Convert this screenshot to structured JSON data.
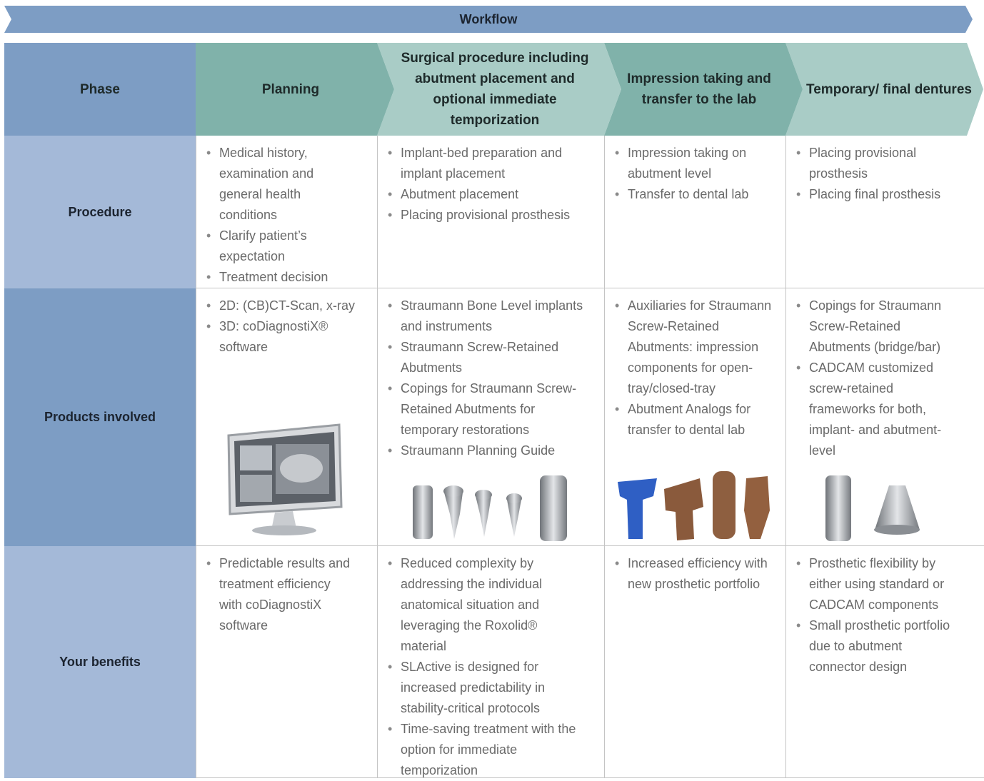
{
  "banner": "Workflow",
  "table": {
    "header": [
      "Phase",
      "Planning",
      "Surgical procedure including abutment placement and optional immediate temporization",
      "Impression taking and transfer to the lab",
      "Temporary/ final dentures"
    ],
    "rows": [
      {
        "label": "Procedure",
        "cells": [
          [
            "Medical history, examination and general health conditions",
            "Clarify patient’s expectation",
            "Treatment decision"
          ],
          [
            "Implant-bed preparation and implant placement",
            "Abutment placement",
            "Placing provisional prosthesis"
          ],
          [
            "Impression taking on abutment level",
            "Transfer to dental lab"
          ],
          [
            "Placing provisional prosthesis",
            "Placing final prosthesis"
          ]
        ]
      },
      {
        "label": "Products involved",
        "cells": [
          [
            "2D: (CB)CT-Scan, x-ray",
            "3D: coDiagnostiX® software"
          ],
          [
            "Straumann Bone Level implants and instruments",
            "Straumann Screw-Retained Abutments",
            "Copings for Straumann Screw-Retained Abutments for temporary restorations",
            "Straumann Planning Guide"
          ],
          [
            "Auxiliaries for Straumann Screw-Retained Abutments: impression components for open-tray/closed-tray",
            "Abutment Analogs for transfer to dental lab"
          ],
          [
            "Copings for Straumann Screw-Retained Abutments (bridge/bar)",
            "CADCAM customized screw-retained frameworks for both, implant- and abutment-level"
          ]
        ]
      },
      {
        "label": "Your benefits",
        "cells": [
          [
            "Predictable results and treatment efficiency with coDiagnostiX software"
          ],
          [
            "Reduced complexity by addressing the individual anatomical situation and leveraging the Roxolid® material",
            "SLActive is designed for increased predictability in stability-critical protocols",
            "Time-saving treatment with the option for immediate temporization"
          ],
          [
            "Increased efficiency with new prosthetic portfolio"
          ],
          [
            "Prosthetic flexibility by either using standard or CADCAM components",
            "Small prosthetic portfolio due to abutment connector design"
          ]
        ]
      }
    ]
  }
}
